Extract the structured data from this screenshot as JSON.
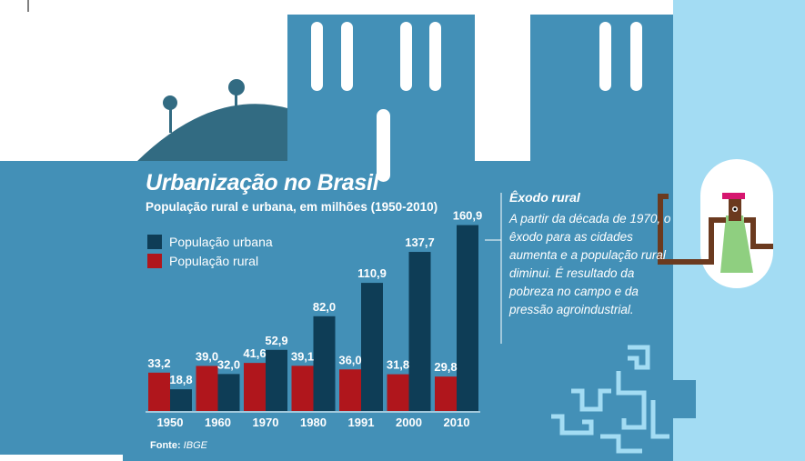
{
  "chart_data": {
    "type": "bar",
    "title": "Urbanização no Brasil",
    "subtitle": "População rural e urbana, em milhões (1950-2010)",
    "categories": [
      "1950",
      "1960",
      "1970",
      "1980",
      "1991",
      "2000",
      "2010"
    ],
    "series": [
      {
        "name": "População urbana",
        "values": [
          18.8,
          32.0,
          52.9,
          82.0,
          110.9,
          137.7,
          160.9
        ],
        "labels": [
          "18,8",
          "32,0",
          "52,9",
          "82,0",
          "110,9",
          "137,7",
          "160,9"
        ],
        "color": "#0e3d56"
      },
      {
        "name": "População rural",
        "values": [
          33.2,
          39.0,
          41.6,
          39.1,
          36.0,
          31.8,
          29.8
        ],
        "labels": [
          "33,2",
          "39,0",
          "41,6",
          "39,1",
          "36,0",
          "31,8",
          "29,8"
        ],
        "color": "#b0161c"
      }
    ],
    "ylim": [
      0,
      170
    ],
    "grid": false,
    "legend_position": "top-left"
  },
  "note": {
    "title": "Êxodo rural",
    "body": "A partir da década de 1970, o êxodo para as cidades aumenta e a população rural diminui. É resultado da pobreza no campo e da pressão agroindustrial."
  },
  "source": {
    "label": "Fonte:",
    "value": "IBGE"
  },
  "colors": {
    "panel": "#4390b7",
    "dark_bar": "#0e3d56",
    "red_bar": "#b0161c",
    "hill": "#326b82",
    "light_blue": "#a3dcf3",
    "figure_shirt": "#8fcf80",
    "figure_head": "#d6166f",
    "figure_body": "#6b3a1f"
  },
  "icons": [
    "tree-icon",
    "person-figure-icon",
    "meander-pattern"
  ]
}
